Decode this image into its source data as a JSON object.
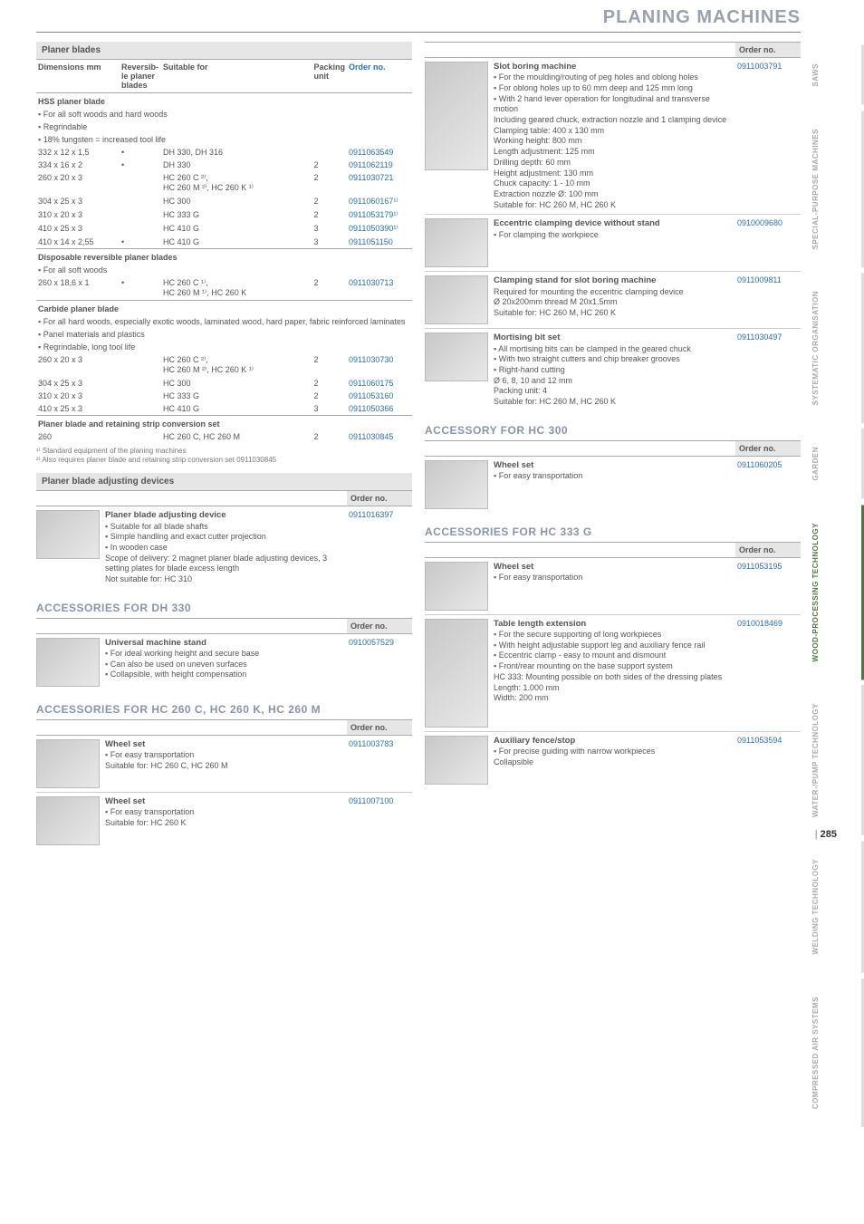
{
  "page_title": "PLANING MACHINES",
  "page_number": "285",
  "side_tabs": [
    {
      "label": "SAWS",
      "active": false
    },
    {
      "label": "SPECIAL-PURPOSE\nMACHINES",
      "active": false
    },
    {
      "label": "SYSTEMATIC\nORGANISATION",
      "active": false
    },
    {
      "label": "GARDEN",
      "active": false
    },
    {
      "label": "WOOD-PROCESSING\nTECHNOLOGY",
      "active": true
    },
    {
      "label": "WATER-/PUMP\nTECHNOLOGY",
      "active": false
    },
    {
      "label": "WELDING\nTECHNOLOGY",
      "active": false
    },
    {
      "label": "COMPRESSED\nAIR SYSTEMS",
      "active": false
    }
  ],
  "order_label": "Order no.",
  "colors": {
    "orderno": "#2a6fb0",
    "heading": "#8a94a8",
    "section_bg": "#e6e6e6"
  },
  "blades": {
    "section": "Planer blades",
    "headers": {
      "dim": "Dimensions\nmm",
      "rev": "Reversib-\nle planer\nblades",
      "suit": "Suitable for",
      "pack": "Packing\nunit",
      "order": "Order no."
    },
    "groups": [
      {
        "title": "HSS planer blade",
        "bullets": [
          "For all soft woods and hard woods",
          "Regrindable",
          "18% tungsten = increased tool life"
        ],
        "rows": [
          {
            "dim": "332 x 12 x 1,5",
            "rev": "•",
            "suit": "DH 330, DH 316",
            "pack": "",
            "order": "0911063549"
          },
          {
            "dim": "334 x 16 x 2",
            "rev": "•",
            "suit": "DH 330",
            "pack": "2",
            "order": "0911062119"
          },
          {
            "dim": "260 x 20 x 3",
            "rev": "",
            "suit": "HC 260 C ²⁾,\nHC 260 M ²⁾, HC 260 K ¹⁾",
            "pack": "2",
            "order": "0911030721"
          },
          {
            "dim": "304 x 25 x 3",
            "rev": "",
            "suit": "HC 300",
            "pack": "2",
            "order": "0911060167¹⁾"
          },
          {
            "dim": "310 x 20 x 3",
            "rev": "",
            "suit": "HC 333 G",
            "pack": "2",
            "order": "0911053179¹⁾"
          },
          {
            "dim": "410 x 25 x 3",
            "rev": "",
            "suit": "HC 410 G",
            "pack": "3",
            "order": "0911050390¹⁾"
          },
          {
            "dim": "410 x 14 x 2,55",
            "rev": "•",
            "suit": "HC 410 G",
            "pack": "3",
            "order": "0911051150"
          }
        ]
      },
      {
        "title": "Disposable reversible planer blades",
        "bullets": [
          "For all soft woods"
        ],
        "rows": [
          {
            "dim": "260 x 18,6 x 1",
            "rev": "•",
            "suit": "HC 260 C ¹⁾,\nHC 260 M ¹⁾, HC 260 K",
            "pack": "2",
            "order": "0911030713"
          }
        ]
      },
      {
        "title": "Carbide planer blade",
        "bullets": [
          "For all hard woods, especially exotic woods, laminated wood, hard paper, fabric reinforced laminates",
          "Panel materials and plastics",
          "Regrindable, long tool life"
        ],
        "rows": [
          {
            "dim": "260 x 20 x 3",
            "rev": "",
            "suit": "HC 260 C ²⁾,\nHC 260 M ²⁾, HC 260 K ¹⁾",
            "pack": "2",
            "order": "0911030730"
          },
          {
            "dim": "304 x 25 x 3",
            "rev": "",
            "suit": "HC 300",
            "pack": "2",
            "order": "0911060175"
          },
          {
            "dim": "310 x 20 x 3",
            "rev": "",
            "suit": "HC 333 G",
            "pack": "2",
            "order": "0911053160"
          },
          {
            "dim": "410 x 25 x 3",
            "rev": "",
            "suit": "HC 410 G",
            "pack": "3",
            "order": "0911050366"
          }
        ]
      },
      {
        "title": "Planer blade and retaining strip conversion set",
        "bullets": [],
        "rows": [
          {
            "dim": "260",
            "rev": "",
            "suit": "HC 260 C, HC 260 M",
            "pack": "2",
            "order": "0911030845"
          }
        ]
      }
    ],
    "footnotes": [
      "¹⁾ Standard equipment of the planing machines",
      "²⁾ Also requires planer blade and retaining strip conversion set 0911030845"
    ]
  },
  "adjusting": {
    "section": "Planer blade adjusting devices",
    "items": [
      {
        "title": "Planer blade adjusting device",
        "bullets": [
          "Suitable for all blade shafts",
          "Simple handling and exact cutter projection",
          "In wooden case"
        ],
        "extra": "Scope of delivery: 2 magnet planer blade adjusting devices, 3 setting plates for blade excess length\nNot suitable for: HC 310",
        "order": "0911016397"
      }
    ]
  },
  "acc_dh330": {
    "heading": "ACCESSORIES FOR DH 330",
    "items": [
      {
        "title": "Universal machine stand",
        "bullets": [
          "For ideal working height and secure base",
          "Can also be used on uneven surfaces",
          "Collapsible, with height compensation"
        ],
        "order": "0910057529"
      }
    ]
  },
  "acc_hc260": {
    "heading": "ACCESSORIES FOR HC 260 C, HC 260 K, HC 260 M",
    "items": [
      {
        "title": "Wheel set",
        "bullets": [
          "For easy transportation"
        ],
        "extra": "Suitable for: HC 260 C, HC 260 M",
        "order": "0911003783"
      },
      {
        "title": "Wheel set",
        "bullets": [
          "For easy transportation"
        ],
        "extra": "Suitable for: HC 260 K",
        "order": "0911007100"
      }
    ]
  },
  "right_top": [
    {
      "title": "Slot boring machine",
      "bullets": [
        "For the moulding/routing of peg holes and oblong holes",
        "For oblong holes up to 60 mm deep and 125 mm long",
        "With 2 hand lever operation for longitudinal and transverse motion"
      ],
      "extra": "Including geared chuck, extraction nozzle and 1 clamping device\nClamping table: 400 x 130 mm\nWorking height: 800 mm\nLength adjustment: 125 mm\nDrilling depth: 60 mm\nHeight adjustment: 130 mm\nChuck capacity: 1 - 10 mm\nExtraction nozzle Ø: 100 mm\nSuitable for: HC 260 M, HC 260 K",
      "order": "0911003791",
      "thumb": "tall"
    },
    {
      "title": "Eccentric clamping device without stand",
      "bullets": [
        "For clamping the workpiece"
      ],
      "order": "0910009680"
    },
    {
      "title": "Clamping stand for slot boring machine",
      "bullets": [],
      "extra": "Required for mounting the eccentric clamping device\nØ 20x200mm thread M 20x1.5mm\nSuitable for: HC 260 M, HC 260 K",
      "order": "0911009811"
    },
    {
      "title": "Mortising bit set",
      "bullets": [
        "All mortising bits can be clamped in the geared chuck",
        "With two straight cutters and chip breaker grooves",
        "Right-hand cutting"
      ],
      "extra": "Ø 6, 8, 10 and 12 mm\nPacking unit: 4\nSuitable for: HC 260 M, HC 260 K",
      "order": "0911030497"
    }
  ],
  "acc_hc300": {
    "heading": "ACCESSORY FOR HC 300",
    "items": [
      {
        "title": "Wheel set",
        "bullets": [
          "For easy transportation"
        ],
        "order": "0911060205"
      }
    ]
  },
  "acc_hc333g": {
    "heading": "ACCESSORIES FOR HC 333 G",
    "items": [
      {
        "title": "Wheel set",
        "bullets": [
          "For easy transportation"
        ],
        "order": "0911053195"
      },
      {
        "title": "Table length extension",
        "bullets": [
          "For the secure supporting of long workpieces",
          "With height adjustable support leg and auxiliary fence rail",
          "Eccentric clamp - easy to mount and dismount",
          "Front/rear mounting on the base support system"
        ],
        "extra": "HC 333: Mounting possible on both sides of the dressing plates\nLength: 1.000 mm\nWidth: 200 mm",
        "order": "0910018469",
        "thumb": "tall"
      },
      {
        "title": "Auxiliary fence/stop",
        "bullets": [
          "For precise guiding with narrow workpieces"
        ],
        "extra": "Collapsible",
        "order": "0911053594"
      }
    ]
  }
}
